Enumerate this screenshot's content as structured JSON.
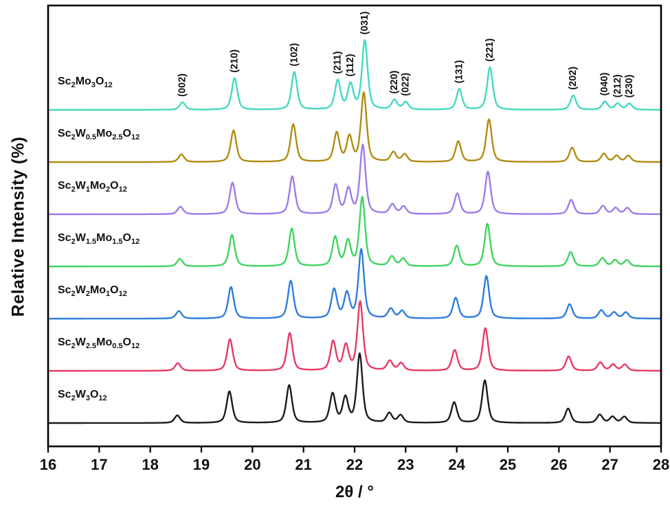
{
  "chart_data": {
    "type": "line",
    "subtype": "xrd-powder-diffraction",
    "title": "",
    "xlabel": "2θ / °",
    "ylabel": "Relative Intensity (%)",
    "x_range": [
      16,
      28
    ],
    "x_ticks": [
      16,
      17,
      18,
      19,
      20,
      21,
      22,
      23,
      24,
      25,
      26,
      27,
      28
    ],
    "grid": false,
    "legend_position": "left-inline",
    "fwhm_deg": 0.13,
    "peaks": [
      {
        "hkl": "(002)",
        "two_theta": 18.53,
        "intensity": 11
      },
      {
        "hkl": "(210)",
        "two_theta": 19.55,
        "intensity": 46
      },
      {
        "hkl": "(102)",
        "two_theta": 20.72,
        "intensity": 55
      },
      {
        "hkl": "(211)",
        "two_theta": 21.57,
        "intensity": 42
      },
      {
        "hkl": "(112)",
        "two_theta": 21.82,
        "intensity": 36
      },
      {
        "hkl": "(031)",
        "two_theta": 22.1,
        "intensity": 100
      },
      {
        "hkl": "(220)",
        "two_theta": 22.68,
        "intensity": 14
      },
      {
        "hkl": "(022)",
        "two_theta": 22.9,
        "intensity": 11
      },
      {
        "hkl": "(131)",
        "two_theta": 23.95,
        "intensity": 30
      },
      {
        "hkl": "(221)",
        "two_theta": 24.55,
        "intensity": 62
      },
      {
        "hkl": "(202)",
        "two_theta": 26.18,
        "intensity": 21
      },
      {
        "hkl": "(040)",
        "two_theta": 26.8,
        "intensity": 12
      },
      {
        "hkl": "(212)",
        "two_theta": 27.05,
        "intensity": 9
      },
      {
        "hkl": "(230)",
        "two_theta": 27.28,
        "intensity": 9
      }
    ],
    "series": [
      {
        "name": "Sc2Mo3O12",
        "formula": [
          [
            "Sc",
            "2"
          ],
          [
            "Mo",
            "3"
          ],
          [
            "O",
            "12"
          ]
        ],
        "color": "#45d9c2",
        "shift": 0.1
      },
      {
        "name": "Sc2W0.5Mo2.5O12",
        "formula": [
          [
            "Sc",
            "2"
          ],
          [
            "W",
            "0.5"
          ],
          [
            "Mo",
            "2.5"
          ],
          [
            "O",
            "12"
          ]
        ],
        "color": "#b08c12",
        "shift": 0.08
      },
      {
        "name": "Sc2W1Mo2O12",
        "formula": [
          [
            "Sc",
            "2"
          ],
          [
            "W",
            "1"
          ],
          [
            "Mo",
            "2"
          ],
          [
            "O",
            "12"
          ]
        ],
        "color": "#9d7ce8",
        "shift": 0.06
      },
      {
        "name": "Sc2W1.5Mo1.5O12",
        "formula": [
          [
            "Sc",
            "2"
          ],
          [
            "W",
            "1.5"
          ],
          [
            "Mo",
            "1.5"
          ],
          [
            "O",
            "12"
          ]
        ],
        "color": "#3fd45f",
        "shift": 0.05
      },
      {
        "name": "Sc2W2Mo1O12",
        "formula": [
          [
            "Sc",
            "2"
          ],
          [
            "W",
            "2"
          ],
          [
            "Mo",
            "1"
          ],
          [
            "O",
            "12"
          ]
        ],
        "color": "#2e7ddb",
        "shift": 0.03
      },
      {
        "name": "Sc2W2.5Mo0.5O12",
        "formula": [
          [
            "Sc",
            "2"
          ],
          [
            "W",
            "2.5"
          ],
          [
            "Mo",
            "0.5"
          ],
          [
            "O",
            "12"
          ]
        ],
        "color": "#e63a63",
        "shift": 0.01
      },
      {
        "name": "Sc2W3O12",
        "formula": [
          [
            "Sc",
            "2"
          ],
          [
            "W",
            "3"
          ],
          [
            "O",
            "12"
          ]
        ],
        "color": "#1b1b1b",
        "shift": 0.0
      }
    ],
    "axis_color": "#000000",
    "text_color": "#111111"
  }
}
